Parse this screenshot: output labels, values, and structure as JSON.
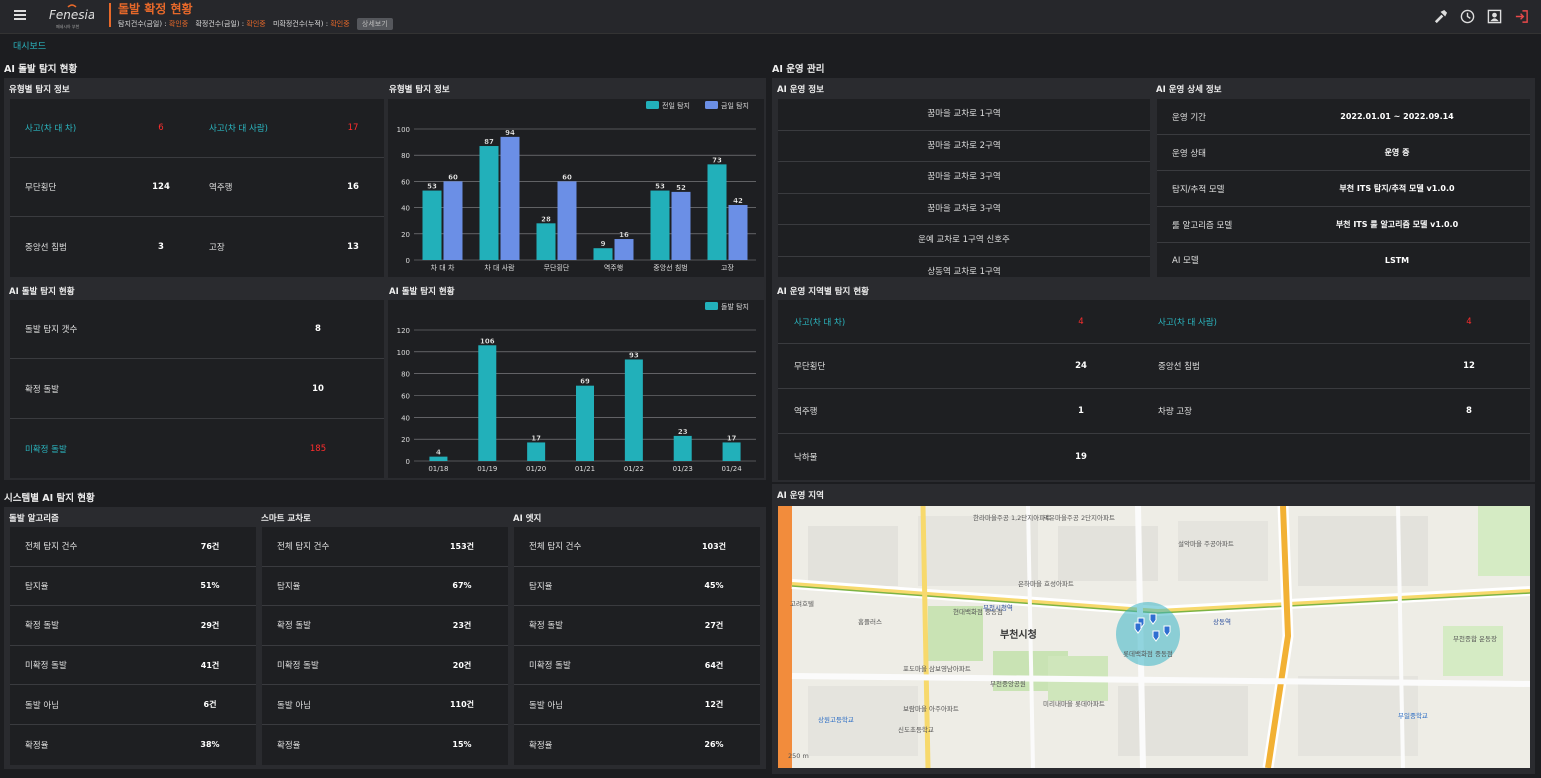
{
  "header": {
    "title": "돌발 확정 현황",
    "status_label_1": "탐지건수(금일) :",
    "status_val_1": "확인중",
    "status_label_2": "확정건수(금일) :",
    "status_val_2": "확인중",
    "status_label_3": "미확정건수(누적) :",
    "status_val_3": "확인중",
    "detail_button": "상세보기",
    "logo_text": "Fenesia",
    "logo_sub": "페네시아 부천"
  },
  "breadcrumb": "대시보드",
  "ai_detect": {
    "section_title": "AI 돌발 탐지 현황",
    "type_info": {
      "title": "유형별 탐지 정보",
      "rows": [
        [
          {
            "label": "사고(차 대 차)",
            "value": "6"
          },
          {
            "label": "사고(차 대 사람)",
            "value": "17"
          }
        ],
        [
          {
            "label": "무단횡단",
            "value": "124"
          },
          {
            "label": "역주행",
            "value": "16"
          }
        ],
        [
          {
            "label": "중앙선 침범",
            "value": "3"
          },
          {
            "label": "고장",
            "value": "13"
          }
        ]
      ]
    },
    "type_chart_title": "유형별 탐지 정보",
    "status": {
      "title": "AI 돌발 탐지 현황",
      "rows": [
        {
          "label": "돌발 탐지 갯수",
          "value": "8"
        },
        {
          "label": "확정 돌발",
          "value": "10"
        },
        {
          "label": "미확정 돌발",
          "value": "185"
        }
      ]
    },
    "status_chart_title": "AI 돌발 탐지 현황"
  },
  "chart_data": [
    {
      "type": "bar",
      "categories": [
        "차 대 차",
        "차 대 사람",
        "무단횡단",
        "역주행",
        "중앙선 침범",
        "고장"
      ],
      "series": [
        {
          "name": "전일 탐지",
          "values": [
            53,
            87,
            28,
            9,
            53,
            73
          ],
          "color": "#22b0ba"
        },
        {
          "name": "금일 탐지",
          "values": [
            60,
            94,
            60,
            16,
            52,
            42
          ],
          "color": "#6b8fe6"
        }
      ],
      "ylim": [
        0,
        100
      ],
      "yticks": [
        0,
        20,
        40,
        60,
        80,
        100
      ],
      "legend": "top-right",
      "grid": true
    },
    {
      "type": "bar",
      "categories": [
        "01/18",
        "01/19",
        "01/20",
        "01/21",
        "01/22",
        "01/23",
        "01/24"
      ],
      "series": [
        {
          "name": "돌발 탐지",
          "values": [
            4,
            106,
            17,
            69,
            93,
            23,
            17
          ],
          "color": "#22b0ba"
        }
      ],
      "ylim": [
        0,
        120
      ],
      "yticks": [
        0,
        20,
        40,
        60,
        80,
        100,
        120
      ],
      "legend": "top-right",
      "grid": true
    }
  ],
  "system": {
    "section_title": "시스템별 AI 탐지 현황",
    "panels": [
      {
        "title": "돌발 알고리즘",
        "rows": [
          {
            "label": "전체 탐지 건수",
            "value": "76건"
          },
          {
            "label": "탐지율",
            "value": "51%"
          },
          {
            "label": "확정 돌발",
            "value": "29건"
          },
          {
            "label": "미확정 돌발",
            "value": "41건"
          },
          {
            "label": "돌발 아님",
            "value": "6건"
          },
          {
            "label": "확정율",
            "value": "38%"
          }
        ]
      },
      {
        "title": "스마트 교차로",
        "rows": [
          {
            "label": "전체 탐지 건수",
            "value": "153건"
          },
          {
            "label": "탐지율",
            "value": "67%"
          },
          {
            "label": "확정 돌발",
            "value": "23건"
          },
          {
            "label": "미확정 돌발",
            "value": "20건"
          },
          {
            "label": "돌발 아님",
            "value": "110건"
          },
          {
            "label": "확정율",
            "value": "15%"
          }
        ]
      },
      {
        "title": "AI 엣지",
        "rows": [
          {
            "label": "전체 탐지 건수",
            "value": "103건"
          },
          {
            "label": "탐지율",
            "value": "45%"
          },
          {
            "label": "확정 돌발",
            "value": "27건"
          },
          {
            "label": "미확정 돌발",
            "value": "64건"
          },
          {
            "label": "돌발 아님",
            "value": "12건"
          },
          {
            "label": "확정율",
            "value": "26%"
          }
        ]
      }
    ]
  },
  "ops": {
    "section_title": "AI 운영 관리",
    "info_title": "AI 운영 정보",
    "sites": [
      "꿈마을 교차로 1구역",
      "꿈마을 교차로 2구역",
      "꿈마을 교차로 3구역",
      "꿈마을 교차로 3구역",
      "운예 교차로 1구역 신호주",
      "상동역 교차로 1구역"
    ],
    "detail_title": "AI 운영 상세 정보",
    "details": [
      {
        "label": "운영 기간",
        "value": "2022.01.01 ~ 2022.09.14"
      },
      {
        "label": "운영 상태",
        "value": "운영 중"
      },
      {
        "label": "탐지/추적 모델",
        "value": "부천 ITS 탐지/추적 모델 v1.0.0"
      },
      {
        "label": "룰 알고리즘 모델",
        "value": "부천 ITS 룰 알고리즘 모델 v1.0.0"
      },
      {
        "label": "AI 모델",
        "value": "LSTM"
      }
    ],
    "region_title": "AI 운영 지역별 탐지 현황",
    "region_rows": [
      [
        {
          "label": "사고(차 대 차)",
          "value": "4"
        },
        {
          "label": "사고(차 대 사람)",
          "value": "4"
        }
      ],
      [
        {
          "label": "무단횡단",
          "value": "24"
        },
        {
          "label": "중앙선 침범",
          "value": "12"
        }
      ],
      [
        {
          "label": "역주행",
          "value": "1"
        },
        {
          "label": "차량 고장",
          "value": "8"
        }
      ],
      [
        {
          "label": "낙하물",
          "value": "19"
        }
      ]
    ],
    "map_title": "AI 운영 지역",
    "map_labels": {
      "city_hall": "부천시청",
      "station_1": "부천시청역",
      "station_2": "상동역",
      "dept_store": "현대백화점 중동점",
      "lotte": "롯데백화점 중동점",
      "central_park": "부천중앙공원",
      "stadium": "부천종합 운동장",
      "apt_1": "한라마을주공 1,2단지아파트",
      "apt_2": "덕유마을주공 2단지아파트",
      "apt_3": "설악마을 주공아파트",
      "apt_4": "은하마을 효성아파트",
      "apt_5": "미리내마을 롯데아파트",
      "apt_6": "보람마을 아주아파트",
      "apt_7": "포도마을 삼보영남아파트",
      "school_1": "상원고등학교",
      "school_2": "신도초등학교",
      "school_3": "부일중학교",
      "hotel": "고려호텔",
      "homeplus": "홈플러스",
      "scale": "250 m"
    }
  }
}
